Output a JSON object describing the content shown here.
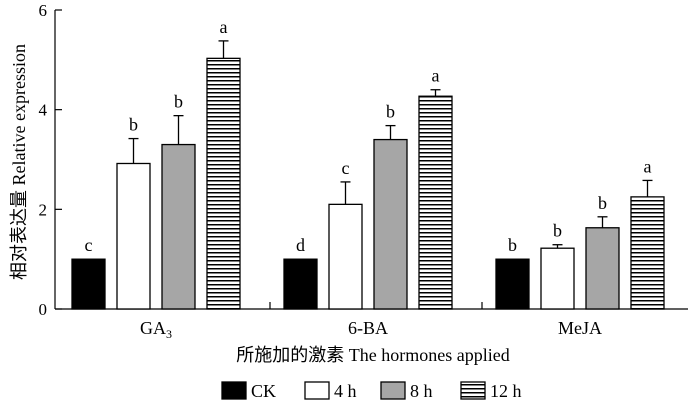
{
  "chart_data": {
    "type": "bar",
    "ylabel": "相对表达量 Relative expression",
    "xlabel": "所施加的激素 The hormones applied",
    "ylim": [
      0,
      6
    ],
    "yticks": [
      0,
      2,
      4,
      6
    ],
    "categories": [
      {
        "main": "GA",
        "sub": "3"
      },
      {
        "main": "6-BA",
        "sub": ""
      },
      {
        "main": "MeJA",
        "sub": ""
      }
    ],
    "series": [
      {
        "name": "CK",
        "fill": "black",
        "values": [
          1.0,
          1.0,
          1.0
        ],
        "errors": [
          0.0,
          0.0,
          0.0
        ],
        "letters": [
          "c",
          "d",
          "b"
        ]
      },
      {
        "name": "4 h",
        "fill": "white",
        "values": [
          2.92,
          2.1,
          1.22
        ],
        "errors": [
          0.5,
          0.45,
          0.07
        ],
        "letters": [
          "b",
          "c",
          "b"
        ]
      },
      {
        "name": "8 h",
        "fill": "gray",
        "values": [
          3.3,
          3.4,
          1.63
        ],
        "errors": [
          0.58,
          0.28,
          0.22
        ],
        "letters": [
          "b",
          "b",
          "b"
        ]
      },
      {
        "name": "12 h",
        "fill": "hlines",
        "values": [
          5.03,
          4.27,
          2.25
        ],
        "errors": [
          0.35,
          0.13,
          0.33
        ],
        "letters": [
          "a",
          "a",
          "a"
        ]
      }
    ],
    "legend_position": "bottom",
    "grid": false,
    "colors": {
      "black": "#000000",
      "white": "#ffffff",
      "gray": "#a6a6a6",
      "stroke": "#000000"
    }
  }
}
